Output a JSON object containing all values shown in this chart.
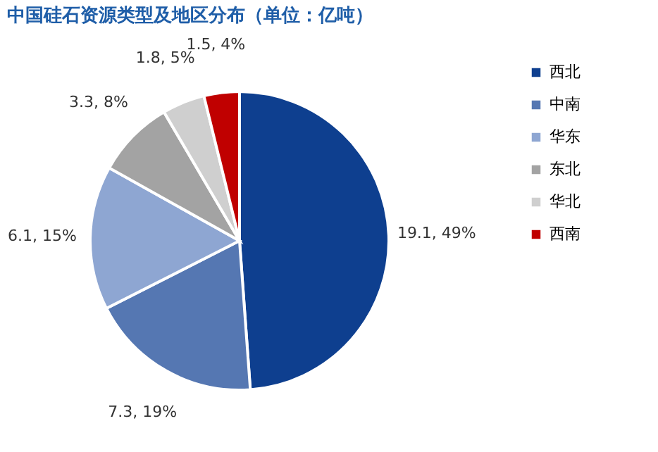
{
  "chart_data": {
    "type": "pie",
    "title": "中国硅石资源类型及地区分布（单位：亿吨）",
    "categories": [
      "西北",
      "中南",
      "华东",
      "东北",
      "华北",
      "西南"
    ],
    "values": [
      19.1,
      7.3,
      6.1,
      3.3,
      1.8,
      1.5
    ],
    "value_labels": [
      "19.1, 49%",
      "7.3, 19%",
      "6.1, 15%",
      "3.3, 8%",
      "1.8, 5%",
      "1.5, 4%"
    ],
    "colors": [
      "#0e3f8f",
      "#5577b2",
      "#8ea6d2",
      "#a3a3a3",
      "#cfcfcf",
      "#c00000"
    ],
    "legend": "right"
  }
}
